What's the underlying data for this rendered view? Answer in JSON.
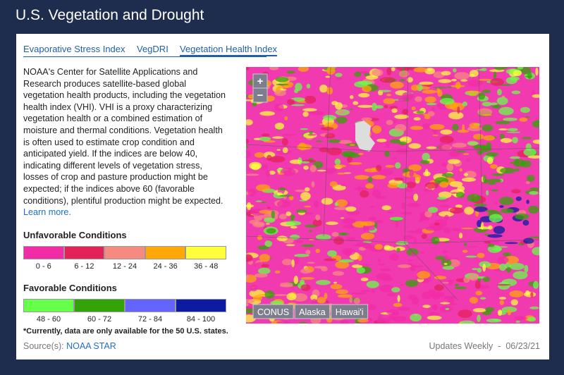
{
  "header": {
    "title": "U.S. Vegetation and Drought"
  },
  "tabs": [
    {
      "label": "Evaporative Stress Index",
      "active": false
    },
    {
      "label": "VegDRI",
      "active": false
    },
    {
      "label": "Vegetation Health Index",
      "active": true
    }
  ],
  "description": "NOAA's Center for Satellite Applications and Research produces satellite-based global vegetation health products, including the vegetation health index (VHI). VHI is a proxy characterizing vegetation health or a combined estimation of moisture and thermal conditions. Vegetation health is often used to estimate crop condition and anticipated yield. If the indices are below 40, indicating different levels of vegetation stress, losses of crop and pasture production might be expected; if the indices above 60 (favorable conditions), plentiful production might be expected.",
  "learn_more": "Learn more.",
  "legends": [
    {
      "title": "Unfavorable Conditions",
      "items": [
        {
          "label": "0 - 6",
          "color": "#f02ca6"
        },
        {
          "label": "6 - 12",
          "color": "#e3225a"
        },
        {
          "label": "12 - 24",
          "color": "#f58a80"
        },
        {
          "label": "24 - 36",
          "color": "#ffa807"
        },
        {
          "label": "36 - 48",
          "color": "#ffff3c"
        }
      ]
    },
    {
      "title": "Favorable Conditions",
      "items": [
        {
          "label": "48 - 60",
          "color": "#66ff4a"
        },
        {
          "label": "60 - 72",
          "color": "#33a307"
        },
        {
          "label": "72 - 84",
          "color": "#6464ff"
        },
        {
          "label": "84 - 100",
          "color": "#0b1ca3"
        }
      ]
    }
  ],
  "note": "*Currently, data are only available for the 50 U.S. states.",
  "source_label": "Source(s):",
  "source_link": "NOAA STAR",
  "updates": "Updates Weekly  -  06/23/21",
  "map": {
    "zoom": [
      "+",
      "−"
    ],
    "regions": [
      "CONUS",
      "Alaska",
      "Hawai'i"
    ]
  }
}
